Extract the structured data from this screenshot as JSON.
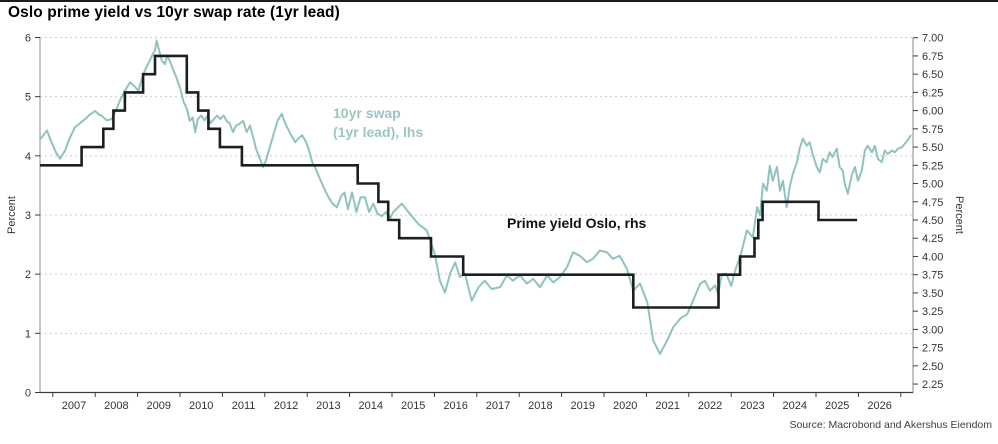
{
  "title": "Oslo prime yield vs 10yr swap rate (1yr lead)",
  "source": "Source: Macrobond and Akershus Eiendom",
  "colors": {
    "swap_line": "#8FC3BF",
    "swap_label": "#9AC6C2",
    "prime_line": "#1B201F",
    "grid": "#CBCBCB",
    "axis_line": "#8A8A8A",
    "baseline": "#3A3A3A",
    "tick_text": "#333333",
    "title_text": "#000000"
  },
  "annotations": {
    "swap_line1": "10yr swap",
    "swap_line2": "(1yr lead), lhs",
    "prime": "Prime yield Oslo, rhs"
  },
  "chart_data": {
    "type": "line",
    "title": "Oslo prime yield vs 10yr swap rate (1yr lead)",
    "grid": "dashed horizontal at left-axis integers",
    "legend_position": "inline text annotations",
    "left_axis": {
      "label": "Percent",
      "range": [
        0,
        6
      ],
      "ticks": [
        0,
        1,
        2,
        3,
        4,
        5,
        6
      ]
    },
    "right_axis": {
      "label": "Percent",
      "range": [
        2.25,
        7.0
      ],
      "ticks": [
        2.25,
        2.5,
        2.75,
        3.0,
        3.25,
        3.5,
        3.75,
        4.0,
        4.25,
        4.5,
        4.75,
        5.0,
        5.25,
        5.5,
        5.75,
        6.0,
        6.25,
        6.5,
        6.75,
        7.0
      ]
    },
    "x_axis": {
      "labels": [
        "2007",
        "2008",
        "2009",
        "2010",
        "2011",
        "2012",
        "2013",
        "2014",
        "2015",
        "2016",
        "2017",
        "2018",
        "2019",
        "2020",
        "2021",
        "2022",
        "2023",
        "2024",
        "2025",
        "2026"
      ],
      "tick_years_start": 2007,
      "tick_years_end": 2027,
      "range": [
        2006.6,
        2027.35
      ]
    },
    "series": [
      {
        "name": "10yr swap (1yr lead), lhs",
        "axis": "left",
        "style": "line",
        "points": [
          [
            2006.7,
            4.28
          ],
          [
            2006.78,
            4.35
          ],
          [
            2006.86,
            4.43
          ],
          [
            2006.97,
            4.23
          ],
          [
            2007.08,
            4.05
          ],
          [
            2007.17,
            3.95
          ],
          [
            2007.29,
            4.09
          ],
          [
            2007.4,
            4.3
          ],
          [
            2007.52,
            4.48
          ],
          [
            2007.64,
            4.55
          ],
          [
            2007.76,
            4.62
          ],
          [
            2007.88,
            4.7
          ],
          [
            2008.0,
            4.76
          ],
          [
            2008.08,
            4.7
          ],
          [
            2008.15,
            4.68
          ],
          [
            2008.27,
            4.6
          ],
          [
            2008.39,
            4.62
          ],
          [
            2008.5,
            4.78
          ],
          [
            2008.58,
            4.93
          ],
          [
            2008.7,
            5.1
          ],
          [
            2008.82,
            5.24
          ],
          [
            2008.92,
            5.18
          ],
          [
            2009.02,
            5.1
          ],
          [
            2009.1,
            5.3
          ],
          [
            2009.17,
            5.44
          ],
          [
            2009.28,
            5.6
          ],
          [
            2009.36,
            5.72
          ],
          [
            2009.41,
            5.78
          ],
          [
            2009.45,
            5.95
          ],
          [
            2009.5,
            5.8
          ],
          [
            2009.57,
            5.61
          ],
          [
            2009.64,
            5.55
          ],
          [
            2009.7,
            5.69
          ],
          [
            2009.76,
            5.6
          ],
          [
            2009.83,
            5.47
          ],
          [
            2009.9,
            5.35
          ],
          [
            2010.0,
            5.15
          ],
          [
            2010.09,
            4.9
          ],
          [
            2010.16,
            4.8
          ],
          [
            2010.23,
            4.59
          ],
          [
            2010.3,
            4.65
          ],
          [
            2010.36,
            4.4
          ],
          [
            2010.42,
            4.62
          ],
          [
            2010.5,
            4.68
          ],
          [
            2010.58,
            4.6
          ],
          [
            2010.65,
            4.68
          ],
          [
            2010.72,
            4.55
          ],
          [
            2010.8,
            4.62
          ],
          [
            2010.87,
            4.68
          ],
          [
            2010.95,
            4.62
          ],
          [
            2011.03,
            4.68
          ],
          [
            2011.1,
            4.59
          ],
          [
            2011.17,
            4.55
          ],
          [
            2011.25,
            4.4
          ],
          [
            2011.32,
            4.51
          ],
          [
            2011.4,
            4.54
          ],
          [
            2011.49,
            4.59
          ],
          [
            2011.57,
            4.4
          ],
          [
            2011.65,
            4.51
          ],
          [
            2011.73,
            4.3
          ],
          [
            2011.8,
            4.1
          ],
          [
            2011.88,
            3.96
          ],
          [
            2011.96,
            3.81
          ],
          [
            2012.04,
            3.95
          ],
          [
            2012.12,
            4.15
          ],
          [
            2012.2,
            4.35
          ],
          [
            2012.3,
            4.59
          ],
          [
            2012.4,
            4.71
          ],
          [
            2012.48,
            4.55
          ],
          [
            2012.55,
            4.45
          ],
          [
            2012.63,
            4.34
          ],
          [
            2012.72,
            4.23
          ],
          [
            2012.8,
            4.3
          ],
          [
            2012.88,
            4.35
          ],
          [
            2012.96,
            4.25
          ],
          [
            2013.04,
            4.1
          ],
          [
            2013.12,
            3.89
          ],
          [
            2013.2,
            3.78
          ],
          [
            2013.3,
            3.61
          ],
          [
            2013.4,
            3.45
          ],
          [
            2013.5,
            3.3
          ],
          [
            2013.6,
            3.19
          ],
          [
            2013.7,
            3.13
          ],
          [
            2013.8,
            3.32
          ],
          [
            2013.88,
            3.38
          ],
          [
            2013.96,
            3.1
          ],
          [
            2014.06,
            3.38
          ],
          [
            2014.16,
            3.05
          ],
          [
            2014.26,
            3.3
          ],
          [
            2014.36,
            3.3
          ],
          [
            2014.46,
            3.05
          ],
          [
            2014.56,
            3.19
          ],
          [
            2014.66,
            3.02
          ],
          [
            2014.76,
            2.98
          ],
          [
            2014.86,
            3.05
          ],
          [
            2014.96,
            2.95
          ],
          [
            2015.03,
            3.05
          ],
          [
            2015.23,
            3.19
          ],
          [
            2015.42,
            3.02
          ],
          [
            2015.62,
            2.85
          ],
          [
            2015.82,
            2.74
          ],
          [
            2016.01,
            2.34
          ],
          [
            2016.13,
            1.89
          ],
          [
            2016.25,
            1.69
          ],
          [
            2016.37,
            2.01
          ],
          [
            2016.49,
            2.2
          ],
          [
            2016.6,
            1.95
          ],
          [
            2016.72,
            2.01
          ],
          [
            2016.88,
            1.55
          ],
          [
            2017.04,
            1.78
          ],
          [
            2017.19,
            1.89
          ],
          [
            2017.35,
            1.75
          ],
          [
            2017.55,
            1.78
          ],
          [
            2017.71,
            1.98
          ],
          [
            2017.85,
            1.89
          ],
          [
            2018.02,
            1.98
          ],
          [
            2018.18,
            1.84
          ],
          [
            2018.33,
            1.92
          ],
          [
            2018.49,
            1.78
          ],
          [
            2018.66,
            1.98
          ],
          [
            2018.8,
            1.86
          ],
          [
            2018.96,
            1.95
          ],
          [
            2019.13,
            2.12
          ],
          [
            2019.27,
            2.37
          ],
          [
            2019.43,
            2.31
          ],
          [
            2019.6,
            2.2
          ],
          [
            2019.74,
            2.26
          ],
          [
            2019.9,
            2.4
          ],
          [
            2020.07,
            2.37
          ],
          [
            2020.21,
            2.26
          ],
          [
            2020.37,
            2.31
          ],
          [
            2020.54,
            2.09
          ],
          [
            2020.69,
            1.72
          ],
          [
            2020.85,
            1.84
          ],
          [
            2021.02,
            1.53
          ],
          [
            2021.16,
            0.88
          ],
          [
            2021.32,
            0.65
          ],
          [
            2021.49,
            0.88
          ],
          [
            2021.63,
            1.1
          ],
          [
            2021.8,
            1.25
          ],
          [
            2021.96,
            1.32
          ],
          [
            2022.1,
            1.55
          ],
          [
            2022.27,
            1.84
          ],
          [
            2022.38,
            1.89
          ],
          [
            2022.5,
            1.72
          ],
          [
            2022.62,
            1.81
          ],
          [
            2022.69,
            1.67
          ],
          [
            2022.78,
            2.0
          ],
          [
            2022.88,
            2.01
          ],
          [
            2023.0,
            1.8
          ],
          [
            2023.11,
            2.1
          ],
          [
            2023.21,
            2.29
          ],
          [
            2023.37,
            2.74
          ],
          [
            2023.51,
            2.62
          ],
          [
            2023.61,
            3.13
          ],
          [
            2023.68,
            2.99
          ],
          [
            2023.75,
            3.53
          ],
          [
            2023.84,
            3.41
          ],
          [
            2023.91,
            3.83
          ],
          [
            2023.98,
            3.58
          ],
          [
            2024.08,
            3.81
          ],
          [
            2024.15,
            3.41
          ],
          [
            2024.22,
            3.58
          ],
          [
            2024.31,
            3.13
          ],
          [
            2024.38,
            3.47
          ],
          [
            2024.45,
            3.69
          ],
          [
            2024.55,
            3.89
          ],
          [
            2024.62,
            4.14
          ],
          [
            2024.69,
            4.29
          ],
          [
            2024.78,
            4.17
          ],
          [
            2024.85,
            4.23
          ],
          [
            2024.92,
            4.03
          ],
          [
            2025.02,
            3.81
          ],
          [
            2025.09,
            3.72
          ],
          [
            2025.16,
            3.95
          ],
          [
            2025.25,
            3.89
          ],
          [
            2025.32,
            4.06
          ],
          [
            2025.39,
            3.98
          ],
          [
            2025.49,
            4.12
          ],
          [
            2025.56,
            3.81
          ],
          [
            2025.63,
            3.75
          ],
          [
            2025.68,
            3.53
          ],
          [
            2025.75,
            3.36
          ],
          [
            2025.85,
            3.69
          ],
          [
            2025.92,
            3.81
          ],
          [
            2025.99,
            3.58
          ],
          [
            2026.08,
            3.75
          ],
          [
            2026.15,
            4.09
          ],
          [
            2026.22,
            4.17
          ],
          [
            2026.32,
            4.06
          ],
          [
            2026.39,
            4.17
          ],
          [
            2026.46,
            3.95
          ],
          [
            2026.55,
            3.89
          ],
          [
            2026.62,
            4.09
          ],
          [
            2026.69,
            4.03
          ],
          [
            2026.79,
            4.09
          ],
          [
            2026.86,
            4.06
          ],
          [
            2026.93,
            4.12
          ],
          [
            2027.02,
            4.14
          ],
          [
            2027.09,
            4.2
          ],
          [
            2027.16,
            4.26
          ],
          [
            2027.23,
            4.34
          ]
        ]
      },
      {
        "name": "Prime yield Oslo, rhs",
        "axis": "right",
        "style": "step",
        "segments": [
          [
            2006.7,
            5.25
          ],
          [
            2007.68,
            5.5
          ],
          [
            2008.19,
            5.75
          ],
          [
            2008.43,
            6.0
          ],
          [
            2008.7,
            6.25
          ],
          [
            2009.13,
            6.5
          ],
          [
            2009.41,
            6.75
          ],
          [
            2010.16,
            6.25
          ],
          [
            2010.43,
            6.0
          ],
          [
            2010.67,
            5.75
          ],
          [
            2010.94,
            5.5
          ],
          [
            2011.46,
            5.25
          ],
          [
            2014.19,
            5.0
          ],
          [
            2014.68,
            4.75
          ],
          [
            2014.91,
            4.5
          ],
          [
            2015.17,
            4.25
          ],
          [
            2015.92,
            4.0
          ],
          [
            2016.68,
            3.75
          ],
          [
            2020.69,
            3.3
          ],
          [
            2022.7,
            3.75
          ],
          [
            2023.21,
            4.0
          ],
          [
            2023.55,
            4.25
          ],
          [
            2023.64,
            4.5
          ],
          [
            2023.74,
            4.75
          ],
          [
            2025.06,
            4.5
          ]
        ],
        "end_year": 2025.97
      }
    ]
  }
}
